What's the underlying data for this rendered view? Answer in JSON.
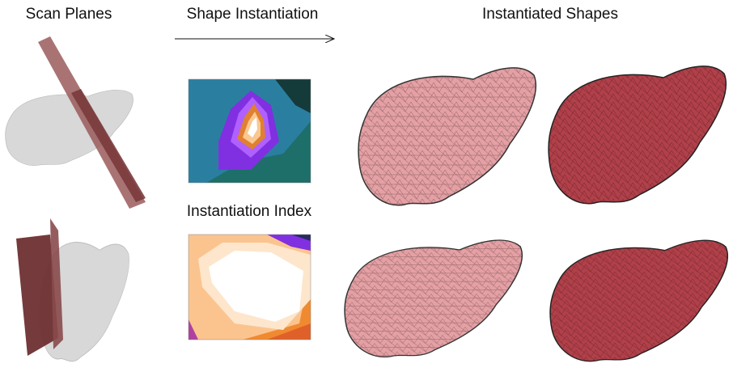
{
  "labels": {
    "scan_planes": "Scan Planes",
    "shape_instantiation": "Shape Instantiation",
    "instantiated_shapes": "Instantiated Shapes",
    "instantiation_index": "Instantiation Index"
  }
}
